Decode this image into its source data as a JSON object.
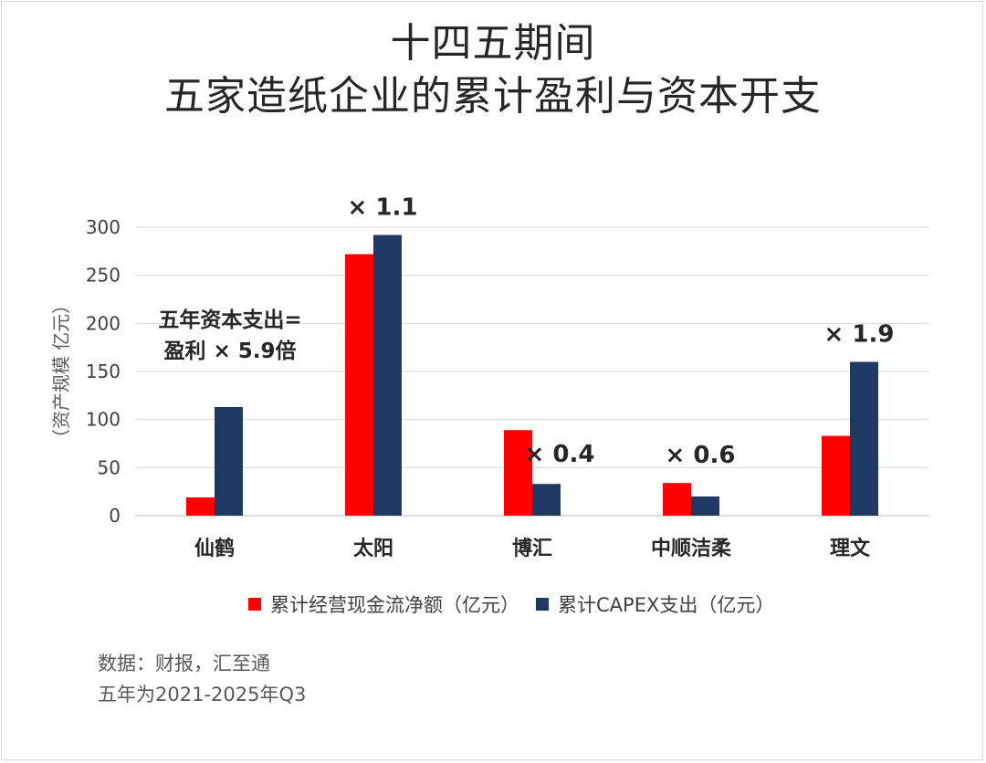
{
  "title_line1": "十四五期间",
  "title_line2": "五家造纸企业的累计盈利与资本开支",
  "colors": {
    "profit": "#ff0000",
    "capex": "#1f3864",
    "grid": "#d9d9d9",
    "text": "#404040"
  },
  "annotation_xianhe": [
    "五年资本支出=",
    "盈利 × 5.9倍"
  ],
  "source_line1": "数据：财报，汇至通",
  "source_line2": "五年为2021-2025年Q3",
  "chart_data": {
    "type": "bar",
    "title": "十四五期间 五家造纸企业的累计盈利与资本开支",
    "categories": [
      "仙鹤",
      "太阳",
      "博汇",
      "中顺洁柔",
      "理文"
    ],
    "series": [
      {
        "name": "累计经营现金流净额（亿元）",
        "values": [
          19,
          272,
          89,
          34,
          83
        ]
      },
      {
        "name": "累计CAPEX支出（亿元）",
        "values": [
          113,
          292,
          33,
          20,
          160
        ]
      }
    ],
    "ratio_labels": [
      "",
      "× 1.1",
      "× 0.4",
      "× 0.6",
      "× 1.9"
    ],
    "ylabel": "（资产规模 亿元）",
    "ylim": [
      0,
      300
    ],
    "yticks": [
      0,
      50,
      100,
      150,
      200,
      250,
      300
    ],
    "legend_position": "bottom"
  }
}
